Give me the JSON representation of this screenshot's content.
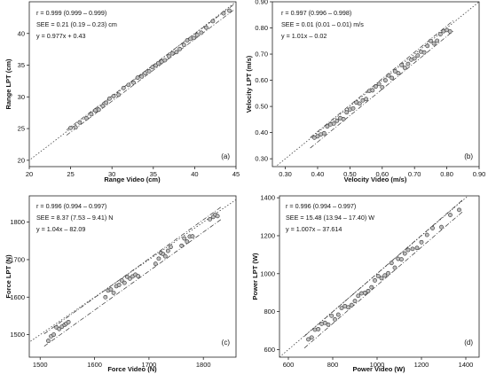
{
  "chart_data": [
    {
      "type": "scatter",
      "panel_label": "(a)",
      "xlabel": "Range Video (cm)",
      "ylabel": "Range LPT (cm)",
      "xlim": [
        20,
        45
      ],
      "ylim": [
        19,
        45
      ],
      "xticks": [
        "20",
        "25",
        "30",
        "35",
        "40",
        "45"
      ],
      "yticks": [
        "20",
        "25",
        "30",
        "35",
        "40"
      ],
      "stats": {
        "r": "r = 0.999 (0.999 – 0.999)",
        "see": "SEE = 0.21 (0.19 – 0.23) cm",
        "eq": "y = 0.977x + 0.43"
      },
      "identity_line": true,
      "fit": {
        "slope": 0.977,
        "intercept": 0.43,
        "band": 0.42
      },
      "points_x": [
        25.0,
        25.6,
        26.1,
        26.9,
        27.5,
        28.0,
        28.4,
        28.9,
        29.3,
        29.7,
        30.2,
        30.8,
        31.4,
        32.0,
        32.6,
        33.1,
        33.6,
        34.0,
        34.5,
        34.9,
        35.3,
        35.6,
        36.0,
        36.4,
        36.9,
        37.3,
        37.8,
        38.2,
        38.7,
        39.1,
        39.5,
        39.9,
        40.3,
        40.8,
        41.4,
        42.2,
        43.5,
        44.2
      ],
      "grid": false
    },
    {
      "type": "scatter",
      "panel_label": "(b)",
      "xlabel": "Velocity Video (m/s)",
      "ylabel": "Velocity LPT (m/s)",
      "xlim": [
        0.26,
        0.9
      ],
      "ylim": [
        0.27,
        0.9
      ],
      "xticks": [
        "0.30",
        "0.40",
        "0.50",
        "0.60",
        "0.70",
        "0.80",
        "0.90"
      ],
      "yticks": [
        "0.30",
        "0.40",
        "0.50",
        "0.60",
        "0.70",
        "0.80",
        "0.90"
      ],
      "stats": {
        "r": "r = 0.997 (0.996 – 0.998)",
        "see": "SEE = 0.01 (0.01 – 0.01) m/s",
        "eq": "y = 1.01x – 0.02"
      },
      "identity_line": true,
      "fit": {
        "slope": 1.01,
        "intercept": -0.02,
        "band": 0.02
      },
      "points_x": [
        0.39,
        0.4,
        0.41,
        0.42,
        0.43,
        0.44,
        0.45,
        0.46,
        0.47,
        0.48,
        0.49,
        0.5,
        0.51,
        0.52,
        0.53,
        0.54,
        0.55,
        0.56,
        0.57,
        0.58,
        0.59,
        0.6,
        0.61,
        0.62,
        0.63,
        0.64,
        0.65,
        0.66,
        0.67,
        0.68,
        0.69,
        0.7,
        0.71,
        0.72,
        0.73,
        0.74,
        0.75,
        0.76,
        0.77,
        0.78,
        0.79,
        0.8,
        0.81
      ],
      "grid": false
    },
    {
      "type": "scatter",
      "panel_label": "(c)",
      "xlabel": "Force Video (N)",
      "ylabel": "Force LPT (N)",
      "xlim": [
        1480,
        1860
      ],
      "ylim": [
        1440,
        1870
      ],
      "xticks": [
        "1500",
        "1600",
        "1700",
        "1800"
      ],
      "yticks": [
        "1500",
        "1600",
        "1700",
        "1800"
      ],
      "stats": {
        "r": "r = 0.996 (0.994 – 0.997)",
        "see": "SEE = 8.37 (7.53 – 9.41) N",
        "eq": "y = 1.04x – 82.09"
      },
      "identity_line": true,
      "fit": {
        "slope": 1.04,
        "intercept": -82.09,
        "band": 16.5
      },
      "points_x": [
        1515,
        1520,
        1525,
        1530,
        1535,
        1540,
        1545,
        1548,
        1552,
        1620,
        1625,
        1630,
        1635,
        1640,
        1645,
        1650,
        1655,
        1660,
        1665,
        1670,
        1675,
        1680,
        1712,
        1718,
        1722,
        1726,
        1730,
        1735,
        1740,
        1760,
        1765,
        1770,
        1775,
        1780,
        1812,
        1818,
        1822,
        1826
      ],
      "grid": false
    },
    {
      "type": "scatter",
      "panel_label": "(d)",
      "xlabel": "Power Video (W)",
      "ylabel": "Power LPT (W)",
      "xlim": [
        560,
        1460
      ],
      "ylim": [
        560,
        1410
      ],
      "xticks": [
        "600",
        "800",
        "1000",
        "1200",
        "1400"
      ],
      "yticks": [
        "600",
        "800",
        "1000",
        "1200",
        "1400"
      ],
      "stats": {
        "r": "r = 0.996 (0.994 – 0.997)",
        "see": "SEE = 15.48 (13.94 – 17.40) W",
        "eq": "y = 1.007x – 37.614"
      },
      "identity_line": true,
      "fit": {
        "slope": 1.007,
        "intercept": -37.614,
        "band": 31
      },
      "points_x": [
        690,
        705,
        720,
        735,
        750,
        765,
        780,
        795,
        810,
        825,
        840,
        855,
        870,
        885,
        900,
        915,
        930,
        945,
        960,
        975,
        990,
        1005,
        1020,
        1035,
        1050,
        1065,
        1080,
        1095,
        1110,
        1125,
        1140,
        1160,
        1180,
        1200,
        1225,
        1250,
        1290,
        1330,
        1370
      ],
      "grid": false
    }
  ]
}
